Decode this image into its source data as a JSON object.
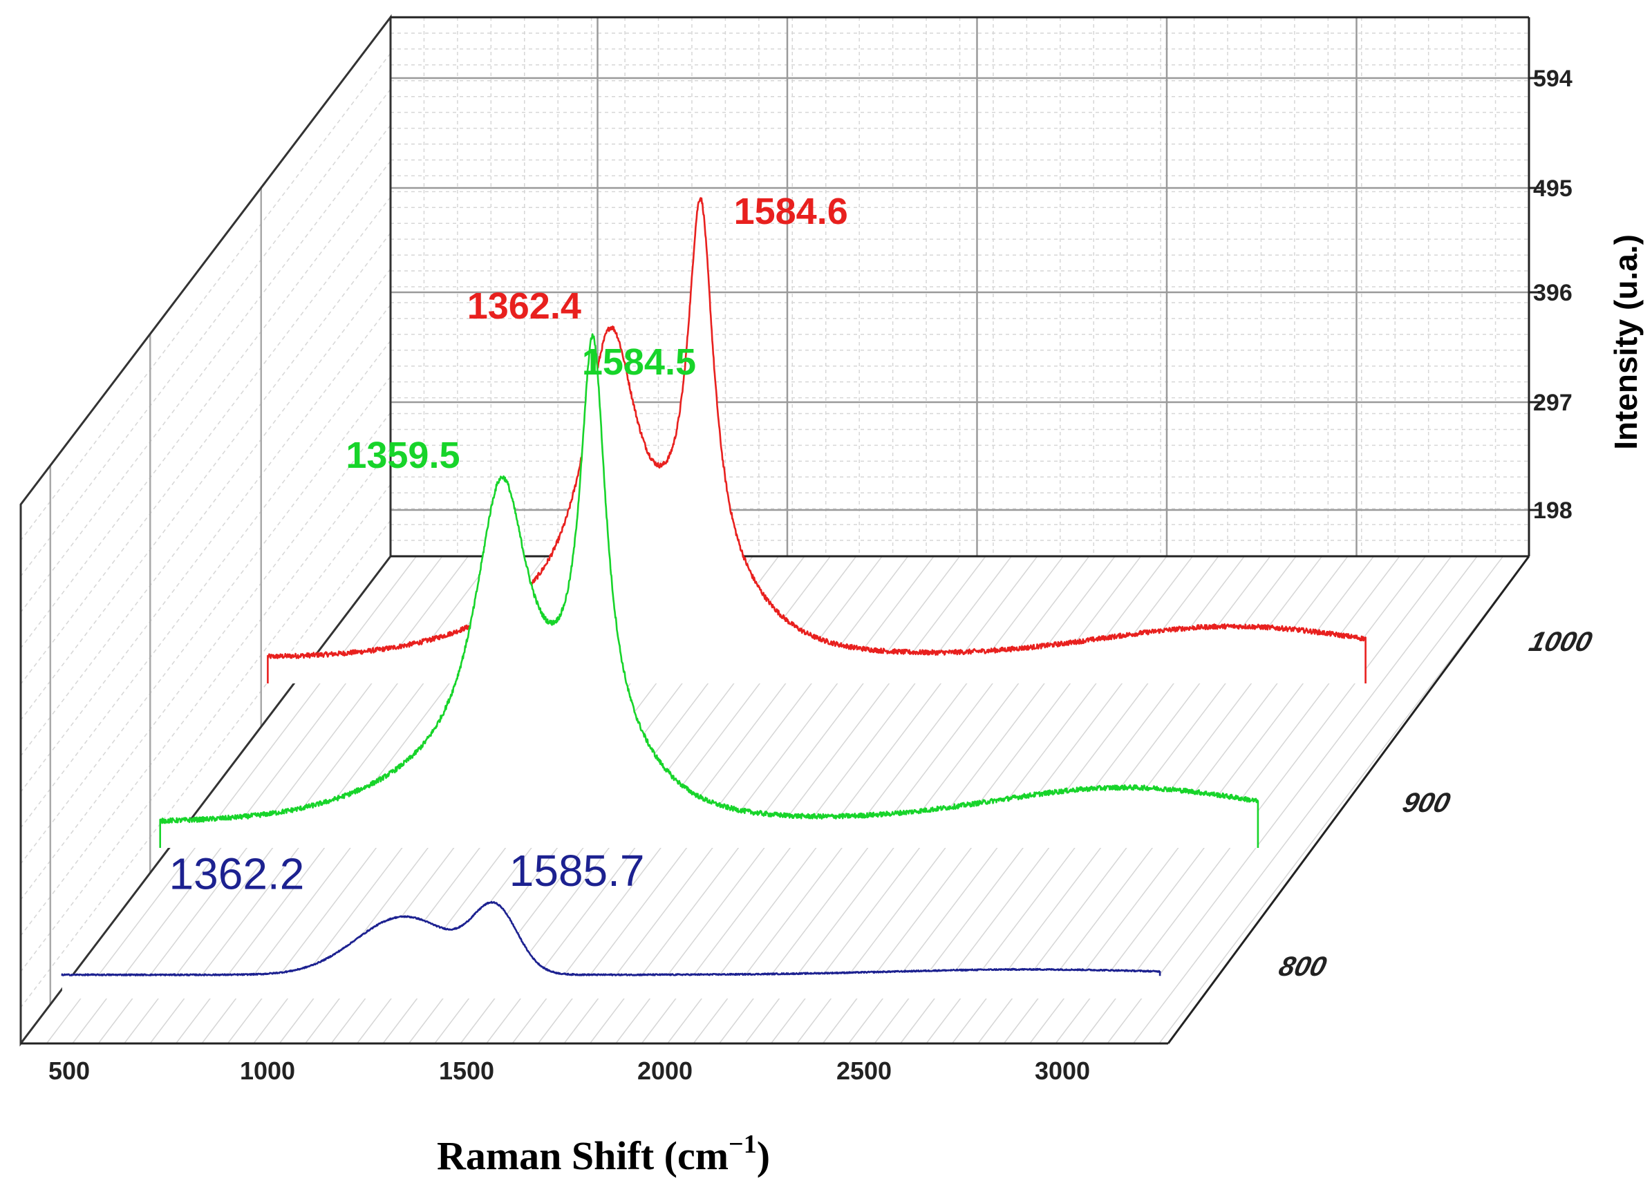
{
  "chart_data": {
    "type": "line",
    "style": "3d-waterfall",
    "xlabel": "Raman Shift (cm",
    "xlabel_superscript": "−1",
    "xlabel_suffix": ")",
    "ylabel": "Intensity (u.a.)",
    "x_ticks": [
      "500",
      "1000",
      "1500",
      "2000",
      "2500",
      "3000"
    ],
    "y_ticks": [
      "198",
      "297",
      "396",
      "495",
      "594"
    ],
    "depth_ticks": [
      "800",
      "900",
      "1000"
    ],
    "xlim": [
      500,
      3300
    ],
    "ylim": [
      150,
      650
    ],
    "grid": true,
    "series": [
      {
        "name": "1000",
        "color": "#e8201e",
        "baseline": 214,
        "peaks": [
          {
            "label": "1362.4",
            "x": 1362.4,
            "y": 506
          },
          {
            "label": "1584.6",
            "x": 1584.6,
            "y": 585
          }
        ],
        "broad_band": {
          "center": 2900,
          "height": 30
        }
      },
      {
        "name": "900",
        "color": "#17d42a",
        "baseline": 193,
        "peaks": [
          {
            "label": "1359.5",
            "x": 1359.5,
            "y": 498
          },
          {
            "label": "1584.5",
            "x": 1584.5,
            "y": 587
          }
        ],
        "broad_band": {
          "center": 2900,
          "height": 33
        }
      },
      {
        "name": "800",
        "color": "#1c2190",
        "baseline": 173,
        "peaks": [
          {
            "label": "1362.2",
            "x": 1362.2,
            "y": 227
          },
          {
            "label": "1585.7",
            "x": 1585.7,
            "y": 230
          }
        ],
        "broad_band": {
          "center": 2900,
          "height": 5
        }
      }
    ]
  }
}
